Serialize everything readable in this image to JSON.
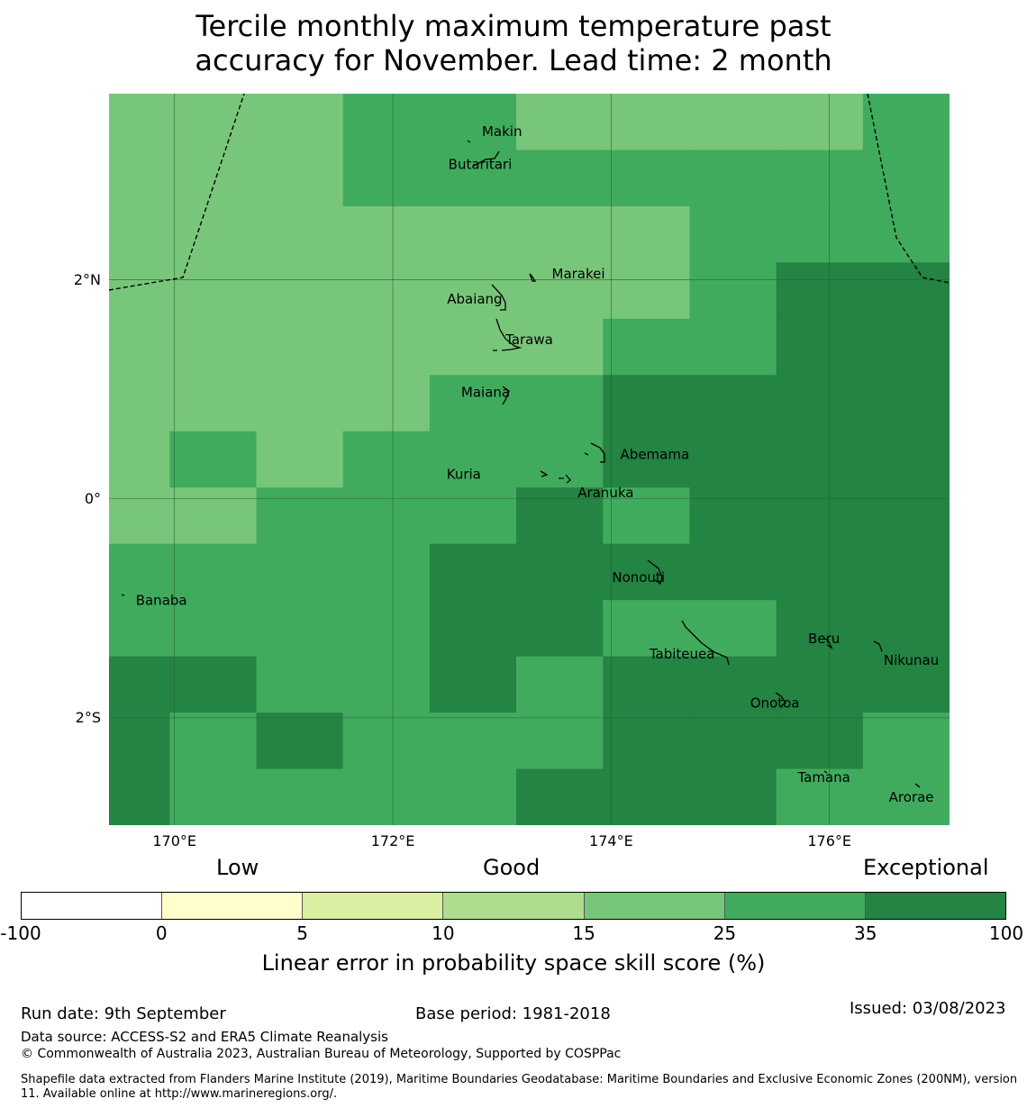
{
  "title": {
    "line1": "Tercile monthly maximum temperature past",
    "line2": "accuracy for November. Lead time: 2 month"
  },
  "map": {
    "lon_range": [
      169.4,
      177.1
    ],
    "lat_range": [
      -2.98,
      3.7
    ],
    "lat_ticks": [
      {
        "label": "2°N",
        "lat": 2
      },
      {
        "label": "0°",
        "lat": 0
      },
      {
        "label": "2°S",
        "lat": -2
      }
    ],
    "lon_ticks": [
      {
        "label": "170°E",
        "lon": 170
      },
      {
        "label": "172°E",
        "lon": 172
      },
      {
        "label": "174°E",
        "lon": 174
      },
      {
        "label": "176°E",
        "lon": 176
      }
    ],
    "skill_grid": {
      "note": "row 0 = north; values are colorbar class index 0-6",
      "rows": [
        [
          4,
          4,
          4,
          5,
          5,
          4,
          4,
          4,
          4,
          5
        ],
        [
          4,
          4,
          4,
          5,
          5,
          5,
          5,
          5,
          5,
          5
        ],
        [
          4,
          4,
          4,
          4,
          4,
          4,
          4,
          5,
          5,
          5
        ],
        [
          4,
          4,
          4,
          4,
          4,
          4,
          4,
          5,
          6,
          6
        ],
        [
          4,
          4,
          4,
          4,
          4,
          4,
          5,
          5,
          6,
          6
        ],
        [
          4,
          4,
          4,
          4,
          5,
          5,
          6,
          6,
          6,
          6
        ],
        [
          4,
          5,
          4,
          5,
          5,
          5,
          6,
          6,
          6,
          6
        ],
        [
          4,
          4,
          5,
          5,
          5,
          6,
          5,
          6,
          6,
          6
        ],
        [
          5,
          5,
          5,
          5,
          6,
          6,
          6,
          6,
          6,
          6
        ],
        [
          5,
          5,
          5,
          5,
          6,
          6,
          5,
          5,
          6,
          6
        ],
        [
          6,
          6,
          5,
          5,
          6,
          5,
          6,
          6,
          6,
          6
        ],
        [
          6,
          5,
          6,
          5,
          5,
          5,
          6,
          6,
          6,
          5
        ],
        [
          6,
          5,
          5,
          5,
          5,
          6,
          6,
          6,
          5,
          5
        ]
      ]
    },
    "islands": [
      {
        "name": "Makin",
        "lon": 173.0,
        "lat": 3.35
      },
      {
        "name": "Butaritari",
        "lon": 172.8,
        "lat": 3.05
      },
      {
        "name": "Marakei",
        "lon": 173.7,
        "lat": 2.05
      },
      {
        "name": "Abaiang",
        "lon": 172.75,
        "lat": 1.82
      },
      {
        "name": "Tarawa",
        "lon": 173.25,
        "lat": 1.45
      },
      {
        "name": "Maiana",
        "lon": 172.85,
        "lat": 0.97
      },
      {
        "name": "Abemama",
        "lon": 174.4,
        "lat": 0.4
      },
      {
        "name": "Kuria",
        "lon": 172.65,
        "lat": 0.22
      },
      {
        "name": "Aranuka",
        "lon": 173.95,
        "lat": 0.05
      },
      {
        "name": "Nonouti",
        "lon": 174.25,
        "lat": -0.72
      },
      {
        "name": "Banaba",
        "lon": 169.88,
        "lat": -0.93
      },
      {
        "name": "Tabiteuea",
        "lon": 174.65,
        "lat": -1.42
      },
      {
        "name": "Beru",
        "lon": 175.95,
        "lat": -1.28
      },
      {
        "name": "Nikunau",
        "lon": 176.75,
        "lat": -1.48
      },
      {
        "name": "Onotoa",
        "lon": 175.5,
        "lat": -1.87
      },
      {
        "name": "Tamana",
        "lon": 175.95,
        "lat": -2.55
      },
      {
        "name": "Arorae",
        "lon": 176.75,
        "lat": -2.73
      }
    ]
  },
  "colorbar": {
    "categories": {
      "low": "Low",
      "good": "Good",
      "exceptional": "Exceptional"
    },
    "ticks": [
      "-100",
      "0",
      "5",
      "10",
      "15",
      "25",
      "35",
      "100"
    ],
    "colors": [
      "#ffffff",
      "#ffffcc",
      "#d9f0a3",
      "#addd8e",
      "#78c679",
      "#41ab5d",
      "#238443"
    ],
    "label": "Linear error in probability space skill score (%)"
  },
  "footer": {
    "run_date": "Run date: 9th September",
    "base_period": "Base period: 1981-2018",
    "issued": "Issued: 03/08/2023",
    "data_source": "Data source: ACCESS-S2 and ERA5 Climate Reanalysis",
    "copyright": "© Commonwealth of Australia 2023, Australian Bureau of Meteorology, Supported by COSPPac",
    "shapefile": "Shapefile data extracted from Flanders Marine Institute (2019), Maritime Boundaries Geodatabase: Maritime Boundaries and Exclusive Economic Zones (200NM), version 11. Available online at http://www.marineregions.org/."
  }
}
